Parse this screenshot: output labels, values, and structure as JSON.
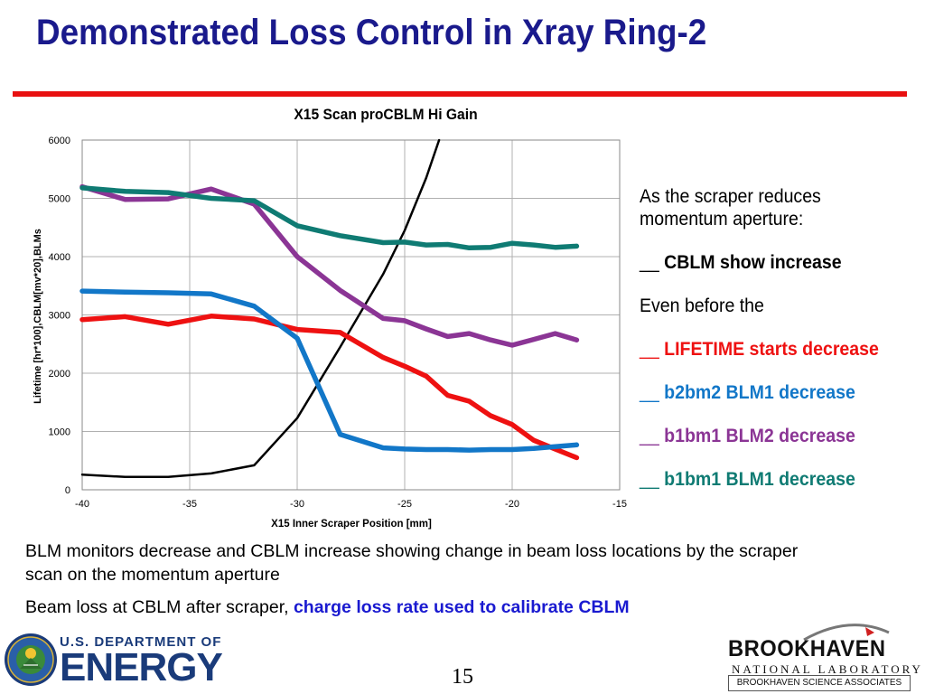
{
  "slide": {
    "title": "Demonstrated Loss Control in Xray Ring-2",
    "page_number": "15"
  },
  "chart_data": {
    "type": "line",
    "title": "X15 Scan proCBLM Hi Gain",
    "xlabel": "X15 Inner Scraper Position [mm]",
    "ylabel": "Lifetime [hr*100],CBLM[mv*20],BLMs",
    "xlim": [
      -40,
      -15
    ],
    "ylim": [
      0,
      6000
    ],
    "x_ticks": [
      -40,
      -35,
      -30,
      -25,
      -20,
      -15
    ],
    "y_ticks": [
      0,
      1000,
      2000,
      3000,
      4000,
      5000,
      6000
    ],
    "grid": true,
    "colors": {
      "cblm": "#000000",
      "lifetime": "#ee1111",
      "b2bm2_blm1": "#1277c8",
      "b1bm1_blm2": "#8b3595",
      "b1bm1_blm1": "#0f7b73"
    },
    "series": [
      {
        "key": "cblm",
        "x": [
          -40,
          -38,
          -36,
          -34,
          -32,
          -30,
          -28,
          -26,
          -25,
          -24,
          -23.4
        ],
        "values": [
          260,
          220,
          220,
          280,
          420,
          1230,
          2450,
          3700,
          4450,
          5350,
          6000
        ]
      },
      {
        "key": "lifetime",
        "x": [
          -40,
          -38,
          -36,
          -34,
          -32,
          -30,
          -28,
          -26,
          -25,
          -24,
          -23,
          -22,
          -21,
          -20,
          -19,
          -18,
          -17
        ],
        "values": [
          2920,
          2970,
          2840,
          2980,
          2930,
          2750,
          2700,
          2270,
          2120,
          1950,
          1620,
          1520,
          1270,
          1120,
          850,
          700,
          550
        ]
      },
      {
        "key": "b2bm2_blm1",
        "x": [
          -40,
          -38,
          -36,
          -34,
          -32,
          -30,
          -28,
          -26,
          -25,
          -24,
          -23,
          -22,
          -21,
          -20,
          -19,
          -18,
          -17
        ],
        "values": [
          3410,
          3390,
          3380,
          3360,
          3150,
          2600,
          950,
          720,
          700,
          690,
          690,
          680,
          690,
          690,
          710,
          740,
          770
        ]
      },
      {
        "key": "b1bm1_blm2",
        "x": [
          -40,
          -38,
          -36,
          -34,
          -32,
          -30,
          -28,
          -26,
          -25,
          -24,
          -23,
          -22,
          -21,
          -20,
          -19,
          -18,
          -17
        ],
        "values": [
          5200,
          4980,
          4990,
          5160,
          4900,
          4000,
          3420,
          2940,
          2900,
          2760,
          2630,
          2680,
          2570,
          2480,
          2580,
          2680,
          2570
        ]
      },
      {
        "key": "b1bm1_blm1",
        "x": [
          -40,
          -38,
          -36,
          -34,
          -32,
          -30,
          -28,
          -26,
          -25,
          -24,
          -23,
          -22,
          -21,
          -20,
          -19,
          -18,
          -17
        ],
        "values": [
          5180,
          5120,
          5100,
          5000,
          4960,
          4530,
          4360,
          4240,
          4250,
          4200,
          4210,
          4150,
          4160,
          4230,
          4200,
          4160,
          4180
        ]
      }
    ]
  },
  "notes": {
    "line1": "As the scraper reduces",
    "line2": "momentum aperture:",
    "cblm_prefix": "__ ",
    "cblm_text": "CBLM show increase",
    "even_before": "Even before the",
    "lifetime_prefix": "__ ",
    "lifetime_text": "LIFETIME starts  decrease",
    "b2bm2_prefix": "__ ",
    "b2bm2_text": "b2bm2     BLM1 decrease",
    "b1bm1_blm2_prefix": "__ ",
    "b1bm1_blm2_text": "b1bm1     BLM2 decrease",
    "b1bm1_blm1_prefix": "__ ",
    "b1bm1_blm1_text": "b1bm1     BLM1 decrease"
  },
  "bottom": {
    "para1": "BLM monitors decrease and CBLM increase showing change in beam loss locations by the scraper scan on the momentum aperture",
    "para2_plain": "Beam loss at CBLM after scraper, ",
    "para2_highlight": "charge loss rate used to calibrate CBLM"
  },
  "logos": {
    "doe_top": "U.S. DEPARTMENT OF",
    "doe_main": "ENERGY",
    "doe_seal_icon": "doe-seal-icon",
    "bnl_name": "BROOKHAVEN",
    "bnl_sub": "NATIONAL LABORATORY",
    "bnl_assoc": "BROOKHAVEN SCIENCE ASSOCIATES"
  }
}
